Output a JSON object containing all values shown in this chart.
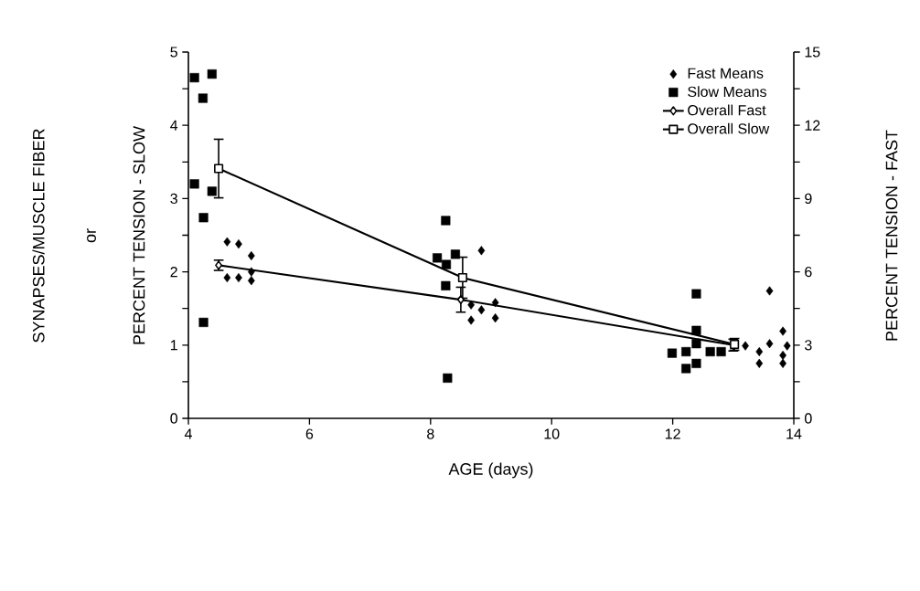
{
  "chart_data": {
    "type": "scatter",
    "xlabel": "AGE (days)",
    "ylabel": "PERCENT TENSION - SLOW",
    "y2label": "PERCENT TENSION - FAST",
    "annotations": [
      "SYNAPSES/MUSCLE FIBER",
      "or"
    ],
    "xlim": [
      4,
      14
    ],
    "xticks": [
      4,
      6,
      8,
      10,
      12,
      14
    ],
    "ylim": [
      0,
      5
    ],
    "yticks": [
      0,
      {
        "value": 0.5,
        "label": null
      },
      1,
      {
        "value": 1.5,
        "label": null
      },
      2,
      {
        "value": 2.5,
        "label": null
      },
      3,
      {
        "value": 3.5,
        "label": null
      },
      4,
      {
        "value": 4.5,
        "label": null
      },
      5
    ],
    "y2lim": [
      0,
      15
    ],
    "y2ticks": [
      0,
      {
        "value": 1.5,
        "label": null
      },
      3,
      {
        "value": 4.5,
        "label": null
      },
      6,
      {
        "value": 7.5,
        "label": null
      },
      9,
      {
        "value": 10.5,
        "label": null
      },
      12,
      {
        "value": 13.5,
        "label": null
      },
      15
    ],
    "legend": "top right",
    "series": [
      {
        "name": "Fast Means",
        "marker": "diamond",
        "color": "#000000",
        "x": [
          4.64,
          4.83,
          5.04,
          4.64,
          4.83,
          5.04,
          5.04,
          8.67,
          8.84,
          9.07,
          8.67,
          9.07,
          8.84,
          13.2,
          13.43,
          13.6,
          13.6,
          13.82,
          13.89,
          13.82,
          13.43,
          13.82
        ],
        "values": [
          2.41,
          2.38,
          2.22,
          1.92,
          1.92,
          2.0,
          1.88,
          1.55,
          1.48,
          1.58,
          1.34,
          1.37,
          2.29,
          0.99,
          0.91,
          1.02,
          1.74,
          1.19,
          0.99,
          0.86,
          0.75,
          0.75
        ]
      },
      {
        "name": "Slow Means",
        "marker": "square",
        "color": "#000000",
        "x": [
          4.1,
          4.39,
          4.24,
          4.1,
          4.39,
          4.25,
          4.25,
          8.25,
          8.11,
          8.41,
          8.26,
          8.25,
          8.28,
          12.39,
          12.39,
          12.39,
          11.99,
          12.22,
          12.62,
          12.8,
          12.22,
          12.39
        ],
        "values": [
          4.65,
          4.7,
          4.37,
          3.2,
          3.1,
          2.74,
          1.31,
          2.7,
          2.19,
          2.24,
          2.1,
          1.81,
          0.55,
          1.7,
          1.2,
          1.02,
          0.89,
          0.91,
          0.91,
          0.91,
          0.68,
          0.75
        ]
      },
      {
        "name": "Overall Fast",
        "type": "line",
        "marker": "diamond",
        "color": "#000000",
        "x": [
          4.5,
          8.5,
          13.0
        ],
        "values": [
          2.09,
          1.62,
          1.0
        ],
        "errors": [
          0.07,
          0.17,
          0.08
        ]
      },
      {
        "name": "Overall Slow",
        "type": "line",
        "marker": "square",
        "color": "#000000",
        "x": [
          4.5,
          8.53,
          13.02
        ],
        "values": [
          3.41,
          1.92,
          1.01
        ],
        "errors": [
          0.4,
          0.28,
          0.08
        ]
      }
    ]
  }
}
